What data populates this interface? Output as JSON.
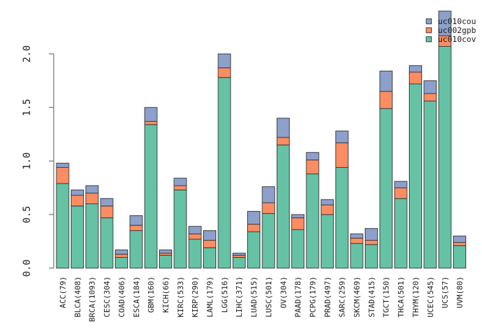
{
  "chart_data": {
    "type": "bar",
    "stacked": true,
    "title": "",
    "xlabel": "",
    "ylabel": "",
    "grid": false,
    "ylim": [
      0,
      2.0
    ],
    "yticks": [
      "0.0",
      "0.5",
      "1.0",
      "1.5",
      "2.0"
    ],
    "categories": [
      "ACC(79)",
      "BLCA(408)",
      "BRCA(1093)",
      "CESC(304)",
      "COAD(406)",
      "ESCA(184)",
      "GBM(160)",
      "KICH(66)",
      "KIRC(533)",
      "KIRP(290)",
      "LAML(179)",
      "LGG(516)",
      "LIHC(371)",
      "LUAD(515)",
      "LUSC(501)",
      "OV(304)",
      "PAAD(178)",
      "PCPG(179)",
      "PRAD(497)",
      "SARC(259)",
      "SKCM(469)",
      "STAD(415)",
      "TGCT(150)",
      "THCA(501)",
      "THYM(120)",
      "UCEC(545)",
      "UCS(57)",
      "UVM(80)"
    ],
    "series": [
      {
        "name": "uc010cov",
        "color": "#66C2A5",
        "values": [
          0.79,
          0.58,
          0.6,
          0.47,
          0.1,
          0.35,
          1.34,
          0.12,
          0.73,
          0.27,
          0.19,
          1.78,
          0.1,
          0.34,
          0.51,
          1.15,
          0.36,
          0.88,
          0.5,
          0.94,
          0.23,
          0.22,
          1.49,
          0.65,
          1.72,
          1.56,
          2.07,
          0.21
        ]
      },
      {
        "name": "uc002gpb",
        "color": "#FC8D62",
        "values": [
          0.15,
          0.1,
          0.1,
          0.11,
          0.03,
          0.05,
          0.03,
          0.02,
          0.04,
          0.05,
          0.07,
          0.09,
          0.02,
          0.07,
          0.1,
          0.07,
          0.11,
          0.13,
          0.09,
          0.23,
          0.05,
          0.04,
          0.16,
          0.1,
          0.11,
          0.07,
          0.1,
          0.03
        ]
      },
      {
        "name": "uc010cou",
        "color": "#8DA0CB",
        "values": [
          0.04,
          0.05,
          0.07,
          0.07,
          0.04,
          0.09,
          0.13,
          0.03,
          0.07,
          0.07,
          0.09,
          0.13,
          0.02,
          0.12,
          0.15,
          0.18,
          0.03,
          0.07,
          0.05,
          0.11,
          0.04,
          0.11,
          0.19,
          0.06,
          0.06,
          0.12,
          0.23,
          0.06
        ]
      }
    ],
    "legend": {
      "position": "top-right",
      "entries_top_to_bottom": [
        "uc010cou",
        "uc002gpb",
        "uc010cov"
      ]
    },
    "colors": {
      "bar_border": "#3c3c3c",
      "axis": "#707070",
      "text": "#1a1a1a",
      "background": "#ffffff"
    }
  }
}
